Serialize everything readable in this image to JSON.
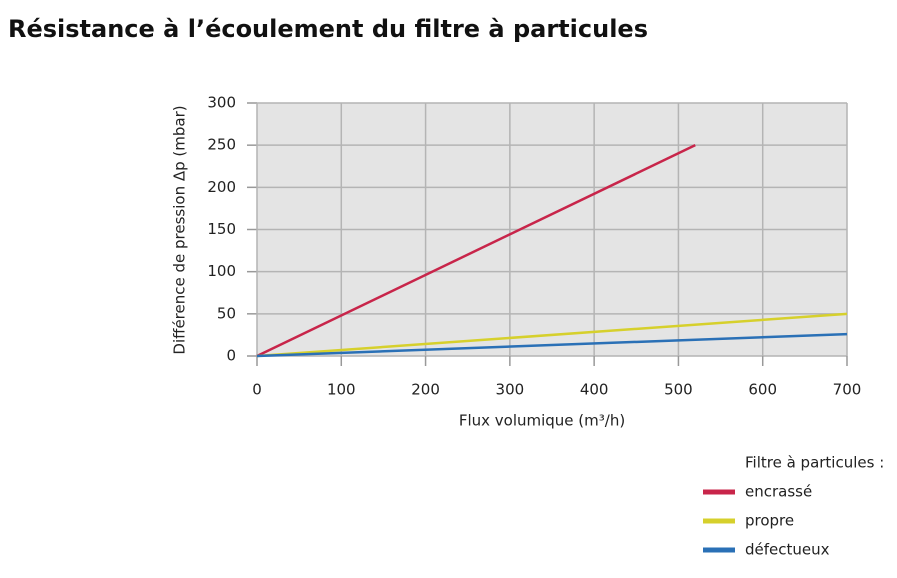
{
  "chart_data": {
    "type": "line",
    "title": "Résistance à l’écoulement du filtre à particules",
    "xlabel": "Flux volumique (m³/h)",
    "ylabel": "Différence de pression Δp (mbar)",
    "legend_title": "Filtre à particules :",
    "xlim": [
      0,
      700
    ],
    "xticks": [
      0,
      100,
      200,
      300,
      400,
      500,
      600,
      700
    ],
    "ylim": [
      0,
      300
    ],
    "yticks": [
      0,
      50,
      100,
      150,
      200,
      250,
      300
    ],
    "grid": true,
    "legend": "bottom-right",
    "series": [
      {
        "name": "encrassé",
        "color": "#c8254a",
        "x": [
          0,
          520
        ],
        "values": [
          0,
          250
        ]
      },
      {
        "name": "propre",
        "color": "#d6d02c",
        "x": [
          0,
          700
        ],
        "values": [
          0,
          50
        ]
      },
      {
        "name": "défectueux",
        "color": "#2a70b6",
        "x": [
          0,
          700
        ],
        "values": [
          0,
          26
        ]
      }
    ]
  }
}
